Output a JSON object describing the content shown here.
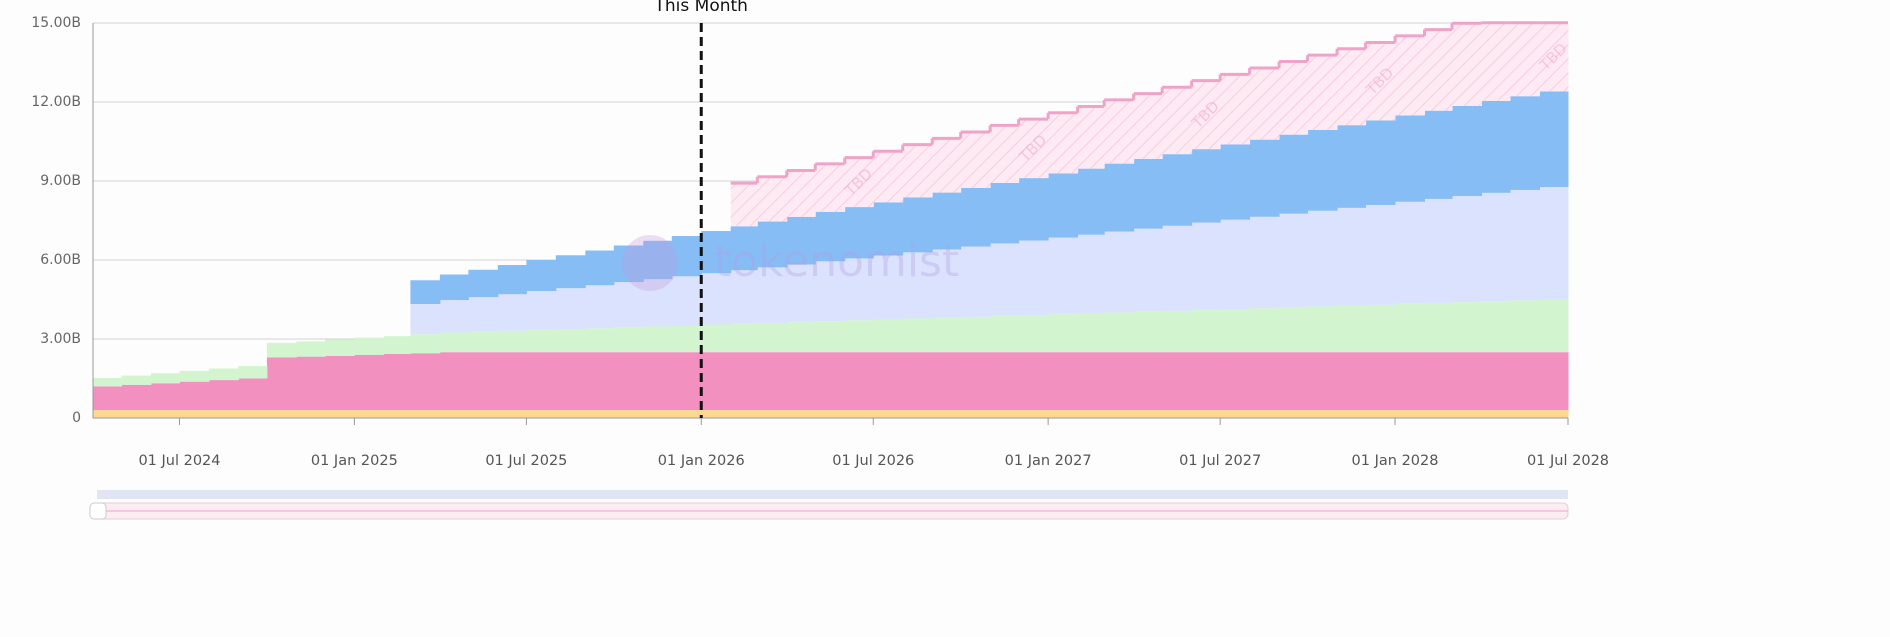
{
  "chart_data": {
    "type": "area",
    "stacked": true,
    "step": true,
    "grid": true,
    "watermark": "tokenomist",
    "x": [
      "2024-04-01",
      "2024-05-01",
      "2024-06-01",
      "2024-07-01",
      "2024-08-01",
      "2024-09-01",
      "2024-10-01",
      "2024-11-01",
      "2024-12-01",
      "2025-01-01",
      "2025-02-01",
      "2025-03-01",
      "2025-04-01",
      "2025-05-01",
      "2025-06-01",
      "2025-07-01",
      "2025-08-01",
      "2025-09-01",
      "2025-10-01",
      "2025-11-01",
      "2025-12-01",
      "2026-01-01",
      "2026-02-01",
      "2026-03-01",
      "2026-04-01",
      "2026-05-01",
      "2026-06-01",
      "2026-07-01",
      "2026-08-01",
      "2026-09-01",
      "2026-10-01",
      "2026-11-01",
      "2026-12-01",
      "2027-01-01",
      "2027-02-01",
      "2027-03-01",
      "2027-04-01",
      "2027-05-01",
      "2027-06-01",
      "2027-07-01",
      "2027-08-01",
      "2027-09-01",
      "2027-10-01",
      "2027-11-01",
      "2027-12-01",
      "2028-01-01",
      "2028-02-01",
      "2028-03-01",
      "2028-04-01",
      "2028-05-01",
      "2028-06-01"
    ],
    "xlim": [
      "2024-04-01",
      "2028-07-01"
    ],
    "xticks": [
      {
        "value": "2024-07-01",
        "label": "01 Jul 2024"
      },
      {
        "value": "2025-01-01",
        "label": "01 Jan 2025"
      },
      {
        "value": "2025-07-01",
        "label": "01 Jul 2025"
      },
      {
        "value": "2026-01-01",
        "label": "01 Jan 2026"
      },
      {
        "value": "2026-07-01",
        "label": "01 Jul 2026"
      },
      {
        "value": "2027-01-01",
        "label": "01 Jan 2027"
      },
      {
        "value": "2027-07-01",
        "label": "01 Jul 2027"
      },
      {
        "value": "2028-01-01",
        "label": "01 Jan 2028"
      },
      {
        "value": "2028-07-01",
        "label": "01 Jul 2028"
      }
    ],
    "ylim": [
      0,
      15
    ],
    "yticks": [
      0,
      {
        "value": 3,
        "label": "3.00B"
      },
      {
        "value": 6,
        "label": "6.00B"
      },
      {
        "value": 9,
        "label": "9.00B"
      },
      {
        "value": 12,
        "label": "12.00B"
      },
      {
        "value": 15,
        "label": "15.00B"
      }
    ],
    "annotations": [
      {
        "x": "2026-01-01",
        "text": "This Month"
      }
    ],
    "series": [
      {
        "color": "#fcd98f",
        "values": [
          0.3,
          0.3,
          0.3,
          0.3,
          0.3,
          0.3,
          0.3,
          0.3,
          0.3,
          0.3,
          0.3,
          0.3,
          0.3,
          0.3,
          0.3,
          0.3,
          0.3,
          0.3,
          0.3,
          0.3,
          0.3,
          0.3,
          0.3,
          0.3,
          0.3,
          0.3,
          0.3,
          0.3,
          0.3,
          0.3,
          0.3,
          0.3,
          0.3,
          0.3,
          0.3,
          0.3,
          0.3,
          0.3,
          0.3,
          0.3,
          0.3,
          0.3,
          0.3,
          0.3,
          0.3,
          0.3,
          0.3,
          0.3,
          0.3,
          0.3,
          0.3
        ]
      },
      {
        "color": "#f290c0",
        "values": [
          0.9,
          0.96,
          1.02,
          1.08,
          1.14,
          1.2,
          2.0,
          2.03,
          2.06,
          2.1,
          2.13,
          2.16,
          2.2,
          2.2,
          2.2,
          2.2,
          2.2,
          2.2,
          2.2,
          2.2,
          2.2,
          2.2,
          2.2,
          2.2,
          2.2,
          2.2,
          2.2,
          2.2,
          2.2,
          2.2,
          2.2,
          2.2,
          2.2,
          2.2,
          2.2,
          2.2,
          2.2,
          2.2,
          2.2,
          2.2,
          2.2,
          2.2,
          2.2,
          2.2,
          2.2,
          2.2,
          2.2,
          2.2,
          2.2,
          2.2,
          2.2
        ]
      },
      {
        "color": "#d2f5cf",
        "values": [
          0.32,
          0.35,
          0.38,
          0.41,
          0.44,
          0.47,
          0.55,
          0.58,
          0.62,
          0.65,
          0.68,
          0.72,
          0.75,
          0.78,
          0.81,
          0.85,
          0.88,
          0.91,
          0.95,
          0.98,
          1.01,
          1.05,
          1.08,
          1.11,
          1.14,
          1.18,
          1.21,
          1.24,
          1.28,
          1.31,
          1.34,
          1.38,
          1.41,
          1.44,
          1.47,
          1.51,
          1.54,
          1.57,
          1.61,
          1.64,
          1.67,
          1.71,
          1.74,
          1.77,
          1.8,
          1.84,
          1.87,
          1.9,
          1.94,
          1.97,
          2.0
        ]
      },
      {
        "color": "#dae2fd",
        "values": [
          null,
          null,
          null,
          null,
          null,
          null,
          null,
          null,
          null,
          null,
          null,
          1.15,
          1.23,
          1.31,
          1.39,
          1.47,
          1.55,
          1.63,
          1.71,
          1.79,
          1.87,
          1.95,
          2.03,
          2.11,
          2.19,
          2.27,
          2.35,
          2.43,
          2.51,
          2.59,
          2.67,
          2.75,
          2.83,
          2.91,
          2.99,
          3.07,
          3.15,
          3.23,
          3.31,
          3.39,
          3.47,
          3.55,
          3.63,
          3.71,
          3.79,
          3.87,
          3.95,
          4.03,
          4.11,
          4.19,
          4.27
        ]
      },
      {
        "color": "#86bdf5",
        "values": [
          null,
          null,
          null,
          null,
          null,
          null,
          null,
          null,
          null,
          null,
          null,
          0.9,
          0.97,
          1.04,
          1.11,
          1.18,
          1.25,
          1.32,
          1.39,
          1.46,
          1.53,
          1.6,
          1.67,
          1.74,
          1.81,
          1.88,
          1.95,
          2.02,
          2.09,
          2.16,
          2.23,
          2.3,
          2.37,
          2.44,
          2.51,
          2.58,
          2.65,
          2.72,
          2.79,
          2.86,
          2.93,
          3.0,
          3.07,
          3.14,
          3.21,
          3.28,
          3.35,
          3.42,
          3.49,
          3.56,
          3.63
        ]
      },
      {
        "name": "TBD",
        "color": "#f0a3c8",
        "hatch": true,
        "values": [
          null,
          null,
          null,
          null,
          null,
          null,
          null,
          null,
          null,
          null,
          null,
          null,
          null,
          null,
          null,
          null,
          null,
          null,
          null,
          null,
          null,
          null,
          1.64,
          1.7,
          1.76,
          1.82,
          1.88,
          1.94,
          2.0,
          2.06,
          2.12,
          2.18,
          2.24,
          2.3,
          2.36,
          2.42,
          2.48,
          2.54,
          2.6,
          2.66,
          2.72,
          2.78,
          2.84,
          2.9,
          2.96,
          3.02,
          3.08,
          3.14,
          2.97,
          2.79,
          2.61
        ]
      }
    ]
  }
}
